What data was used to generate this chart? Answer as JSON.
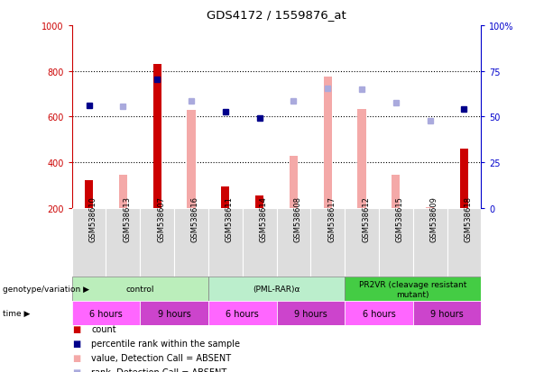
{
  "title": "GDS4172 / 1559876_at",
  "samples": [
    "GSM538610",
    "GSM538613",
    "GSM538607",
    "GSM538616",
    "GSM538611",
    "GSM538614",
    "GSM538608",
    "GSM538617",
    "GSM538612",
    "GSM538615",
    "GSM538609",
    "GSM538618"
  ],
  "count_present": [
    320,
    null,
    830,
    null,
    295,
    255,
    null,
    null,
    null,
    null,
    null,
    460
  ],
  "count_absent": [
    null,
    345,
    null,
    630,
    null,
    null,
    430,
    775,
    635,
    345,
    205,
    null
  ],
  "rank_present": [
    650,
    null,
    765,
    null,
    620,
    595,
    null,
    null,
    null,
    null,
    null,
    635
  ],
  "rank_absent": [
    null,
    645,
    null,
    668,
    null,
    null,
    670,
    725,
    720,
    660,
    580,
    null
  ],
  "ylim": [
    200,
    1000
  ],
  "yticks": [
    200,
    400,
    600,
    800,
    1000
  ],
  "y2lim": [
    0,
    100
  ],
  "y2ticks": [
    0,
    25,
    50,
    75,
    100
  ],
  "y2labels": [
    "0",
    "25",
    "50",
    "75",
    "100%"
  ],
  "color_count_present": "#cc0000",
  "color_count_absent": "#f4a9a8",
  "color_rank_present": "#00008b",
  "color_rank_absent": "#aaaadd",
  "left_axis_color": "#cc0000",
  "right_axis_color": "#0000cc",
  "grid_color": "#000000",
  "group_data": [
    {
      "label": "control",
      "start": 0,
      "end": 4,
      "color": "#bbeebb"
    },
    {
      "label": "(PML-RAR)α",
      "start": 4,
      "end": 8,
      "color": "#bbeecc"
    },
    {
      "label": "PR2VR (cleavage resistant\nmutant)",
      "start": 8,
      "end": 12,
      "color": "#44cc44"
    }
  ],
  "time_data": [
    {
      "label": "6 hours",
      "start": 0,
      "end": 2,
      "color": "#ff66ff"
    },
    {
      "label": "9 hours",
      "start": 2,
      "end": 4,
      "color": "#cc44cc"
    },
    {
      "label": "6 hours",
      "start": 4,
      "end": 6,
      "color": "#ff66ff"
    },
    {
      "label": "9 hours",
      "start": 6,
      "end": 8,
      "color": "#cc44cc"
    },
    {
      "label": "6 hours",
      "start": 8,
      "end": 10,
      "color": "#ff66ff"
    },
    {
      "label": "9 hours",
      "start": 10,
      "end": 12,
      "color": "#cc44cc"
    }
  ],
  "bg_color": "#ffffff",
  "sample_bg": "#dddddd"
}
